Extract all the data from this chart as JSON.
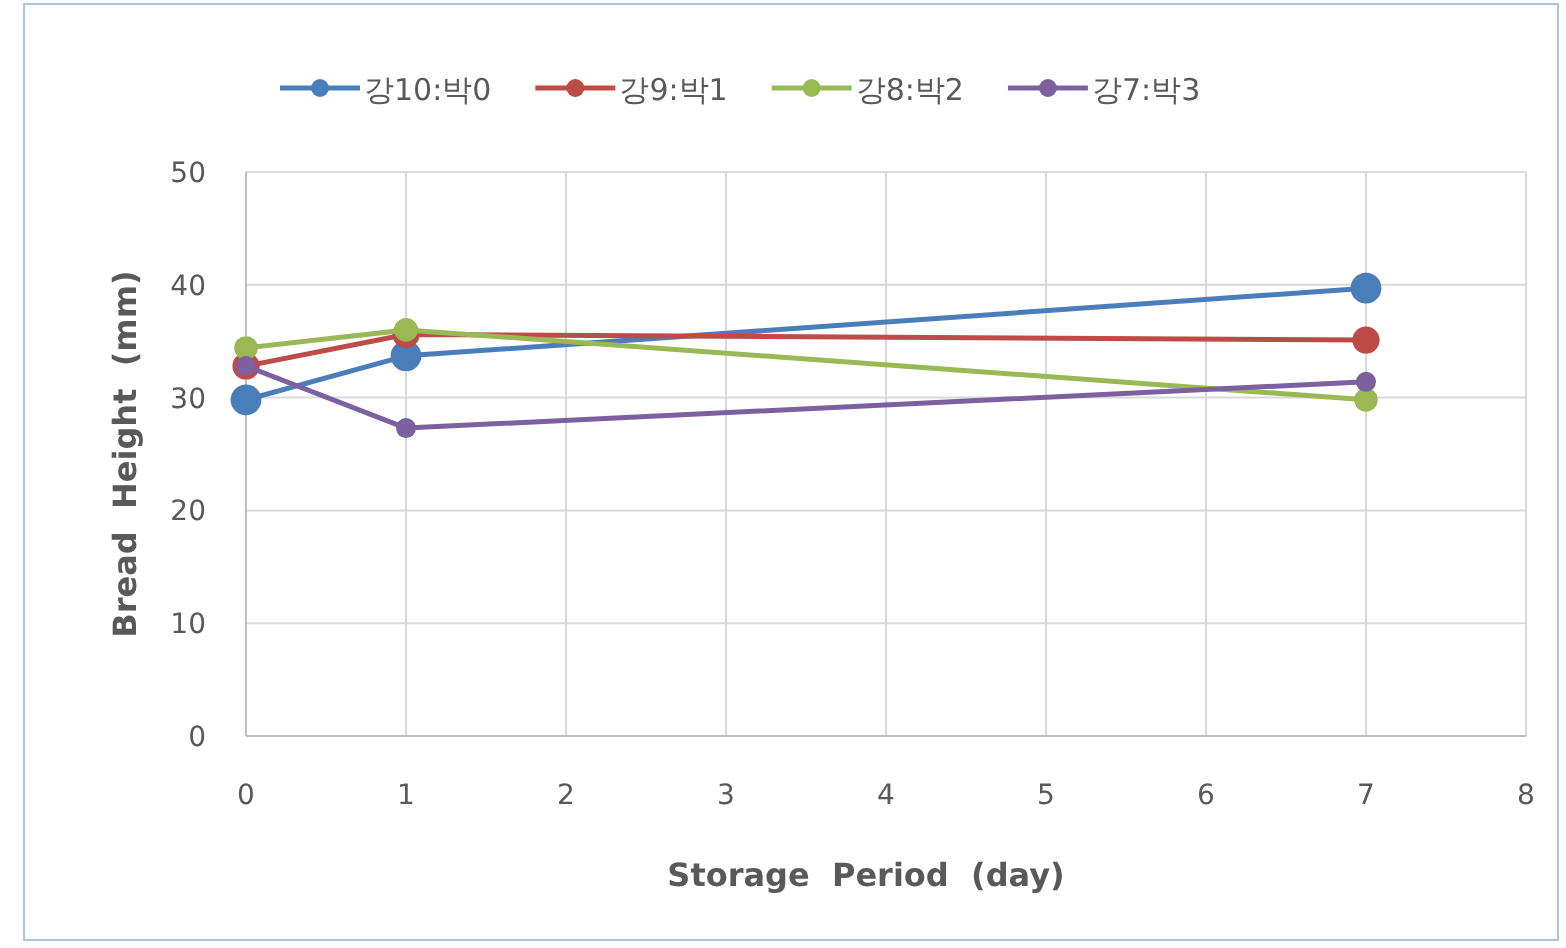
{
  "chart_data": {
    "type": "line",
    "xlabel": "Storage  Period  (day)",
    "ylabel": "Bread  Height  (mm)",
    "x": [
      0,
      1,
      7
    ],
    "series": [
      {
        "name": "강10:박0",
        "color": "#4a7ebb",
        "values": [
          29.8,
          33.7,
          39.7
        ]
      },
      {
        "name": "강9:박1",
        "color": "#be4b48",
        "values": [
          32.8,
          35.6,
          35.1
        ]
      },
      {
        "name": "강8:박2",
        "color": "#98b954",
        "values": [
          34.4,
          36.0,
          29.8
        ]
      },
      {
        "name": "강7:박3",
        "color": "#7d60a0",
        "values": [
          32.8,
          27.3,
          31.4
        ]
      }
    ],
    "xlim": [
      0,
      8
    ],
    "xticks": [
      0,
      1,
      2,
      3,
      4,
      5,
      6,
      7,
      8
    ],
    "ylim": [
      0,
      50
    ],
    "yticks": [
      0,
      10,
      20,
      30,
      40,
      50
    ],
    "grid": true,
    "legend": "top",
    "marker": "circle",
    "line_style": "solid"
  }
}
